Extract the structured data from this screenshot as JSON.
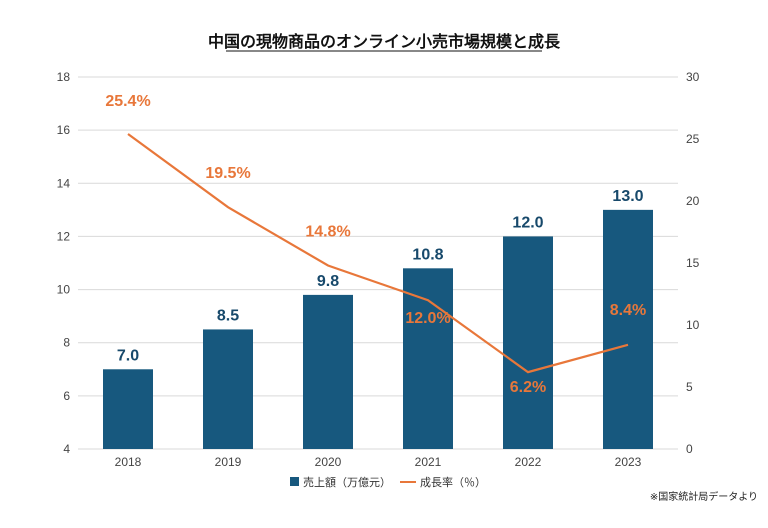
{
  "chart_data": {
    "type": "bar+line",
    "title": "中国の現物商品のオンライン小売市場規模と成長",
    "categories": [
      "2018",
      "2019",
      "2020",
      "2021",
      "2022",
      "2023"
    ],
    "series": [
      {
        "name": "売上額（万億元）",
        "type": "bar",
        "axis": "left",
        "values": [
          7.0,
          8.5,
          9.8,
          10.8,
          12.0,
          13.0
        ],
        "labels": [
          "7.0",
          "8.5",
          "9.8",
          "10.8",
          "12.0",
          "13.0"
        ],
        "color": "#17587e"
      },
      {
        "name": "成長率（％）",
        "type": "line",
        "axis": "right",
        "values": [
          25.4,
          19.5,
          14.8,
          12.0,
          6.2,
          8.4
        ],
        "labels": [
          "25.4%",
          "19.5%",
          "14.8%",
          "12.0%",
          "6.2%",
          "8.4%"
        ],
        "color": "#e8773a"
      }
    ],
    "y_left": {
      "min": 4,
      "max": 18,
      "ticks": [
        "4",
        "6",
        "8",
        "10",
        "12",
        "14",
        "16",
        "18"
      ]
    },
    "y_right": {
      "min": 0,
      "max": 30,
      "ticks": [
        "0",
        "5",
        "10",
        "15",
        "20",
        "25",
        "30"
      ]
    },
    "grid": true,
    "legend": "bottom-center",
    "note": "※国家統計局データより",
    "label_color_bar": "#17496b",
    "gridline_color": "#d9d9d9"
  }
}
